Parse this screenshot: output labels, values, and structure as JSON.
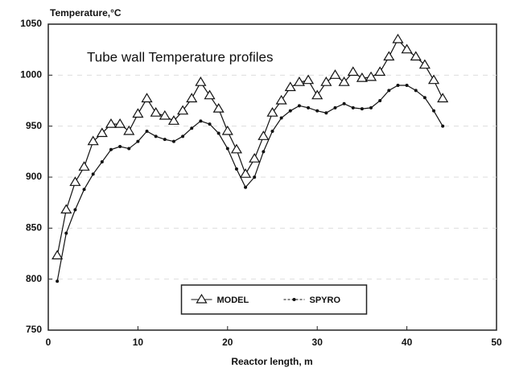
{
  "chart_data": {
    "type": "line",
    "ylabel": "Temperature,°C",
    "annotation": "Tube wall Temperature profiles",
    "xlabel": "Reactor length, m",
    "x": [
      1,
      2,
      3,
      4,
      5,
      6,
      7,
      8,
      9,
      10,
      11,
      12,
      13,
      14,
      15,
      16,
      17,
      18,
      19,
      20,
      21,
      22,
      23,
      24,
      25,
      26,
      27,
      28,
      29,
      30,
      31,
      32,
      33,
      34,
      35,
      36,
      37,
      38,
      39,
      40,
      41,
      42,
      43,
      44
    ],
    "series": [
      {
        "name": "MODEL",
        "color": "#111111",
        "marker": "triangle",
        "values": [
          823,
          868,
          895,
          910,
          935,
          943,
          952,
          952,
          945,
          962,
          977,
          963,
          960,
          955,
          965,
          977,
          993,
          980,
          967,
          945,
          927,
          903,
          918,
          940,
          963,
          975,
          988,
          993,
          995,
          980,
          993,
          1000,
          993,
          1003,
          997,
          998,
          1003,
          1018,
          1035,
          1025,
          1018,
          1010,
          995,
          977
        ]
      },
      {
        "name": "SPYRO",
        "color": "#111111",
        "marker": "dot",
        "values": [
          798,
          845,
          868,
          888,
          903,
          915,
          927,
          930,
          928,
          935,
          945,
          940,
          937,
          935,
          940,
          948,
          955,
          952,
          943,
          928,
          908,
          890,
          900,
          925,
          945,
          958,
          965,
          970,
          968,
          965,
          963,
          968,
          972,
          968,
          967,
          968,
          975,
          985,
          990,
          990,
          985,
          978,
          965,
          950
        ]
      }
    ],
    "xlim": [
      0,
      50
    ],
    "xticks": [
      0,
      10,
      20,
      30,
      40,
      50
    ],
    "ylim": [
      750,
      1050
    ],
    "yticks": [
      750,
      800,
      850,
      900,
      950,
      1000,
      1050
    ],
    "grid": true,
    "legend": "lower center"
  }
}
